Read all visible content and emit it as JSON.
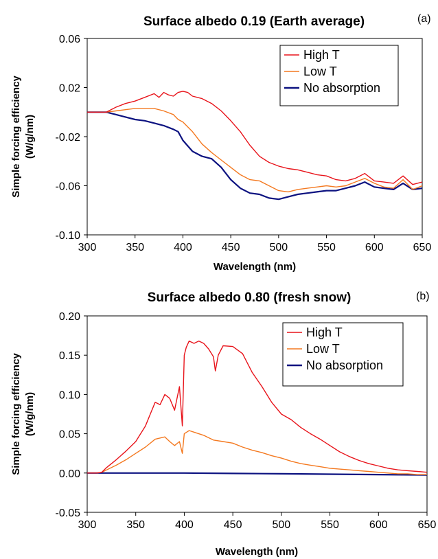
{
  "chart_data": [
    {
      "type": "line",
      "panel_label": "(a)",
      "title": "Surface albedo 0.19 (Earth average)",
      "xlabel": "Wavelength (nm)",
      "ylabel": [
        "Simple forcing efficiency",
        "(W/g/nm)"
      ],
      "xlim": [
        300,
        650
      ],
      "ylim": [
        -0.1,
        0.06
      ],
      "xticks": [
        "300",
        "350",
        "400",
        "450",
        "500",
        "550",
        "600",
        "650"
      ],
      "yticks": [
        "-0.10",
        "-0.06",
        "-0.02",
        "0.02",
        "0.06"
      ],
      "legend_position": "top-right",
      "series": [
        {
          "name": "High T",
          "color": "#e8141b",
          "x": [
            300,
            310,
            320,
            330,
            340,
            350,
            360,
            370,
            375,
            380,
            385,
            390,
            395,
            400,
            405,
            410,
            420,
            430,
            440,
            450,
            460,
            470,
            480,
            490,
            500,
            510,
            520,
            530,
            540,
            550,
            560,
            570,
            580,
            590,
            600,
            610,
            620,
            630,
            640,
            650
          ],
          "y": [
            0.0,
            0.0,
            0.0,
            0.004,
            0.007,
            0.009,
            0.012,
            0.015,
            0.012,
            0.016,
            0.014,
            0.013,
            0.016,
            0.017,
            0.016,
            0.013,
            0.011,
            0.007,
            0.001,
            -0.007,
            -0.016,
            -0.027,
            -0.036,
            -0.041,
            -0.044,
            -0.046,
            -0.047,
            -0.049,
            -0.051,
            -0.052,
            -0.055,
            -0.056,
            -0.054,
            -0.05,
            -0.056,
            -0.057,
            -0.058,
            -0.052,
            -0.059,
            -0.057
          ]
        },
        {
          "name": "Low T",
          "color": "#f47920",
          "x": [
            300,
            310,
            320,
            330,
            340,
            350,
            360,
            370,
            380,
            390,
            395,
            400,
            410,
            420,
            430,
            440,
            450,
            460,
            470,
            480,
            490,
            500,
            510,
            520,
            530,
            540,
            550,
            560,
            570,
            580,
            590,
            600,
            610,
            620,
            630,
            640,
            650
          ],
          "y": [
            0.0,
            0.0,
            0.0,
            0.001,
            0.002,
            0.003,
            0.003,
            0.003,
            0.001,
            -0.002,
            -0.006,
            -0.008,
            -0.016,
            -0.026,
            -0.033,
            -0.039,
            -0.045,
            -0.051,
            -0.055,
            -0.056,
            -0.06,
            -0.064,
            -0.065,
            -0.063,
            -0.062,
            -0.061,
            -0.06,
            -0.061,
            -0.06,
            -0.057,
            -0.054,
            -0.058,
            -0.061,
            -0.062,
            -0.055,
            -0.063,
            -0.06
          ]
        },
        {
          "name": "No absorption",
          "color": "#0c1280",
          "x": [
            300,
            310,
            320,
            330,
            340,
            350,
            360,
            370,
            380,
            390,
            395,
            400,
            410,
            420,
            430,
            440,
            450,
            460,
            470,
            480,
            490,
            500,
            510,
            520,
            530,
            540,
            550,
            560,
            570,
            580,
            590,
            600,
            610,
            620,
            630,
            640,
            650
          ],
          "y": [
            0.0,
            0.0,
            0.0,
            -0.002,
            -0.004,
            -0.006,
            -0.007,
            -0.009,
            -0.011,
            -0.014,
            -0.016,
            -0.023,
            -0.032,
            -0.036,
            -0.038,
            -0.045,
            -0.055,
            -0.062,
            -0.066,
            -0.067,
            -0.07,
            -0.071,
            -0.069,
            -0.067,
            -0.066,
            -0.065,
            -0.064,
            -0.064,
            -0.062,
            -0.06,
            -0.057,
            -0.061,
            -0.062,
            -0.063,
            -0.058,
            -0.063,
            -0.062
          ]
        }
      ]
    },
    {
      "type": "line",
      "panel_label": "(b)",
      "title": "Surface albedo 0.80 (fresh snow)",
      "xlabel": "Wavelength (nm)",
      "ylabel": [
        "Simple forcing efficiency",
        "(W/g/nm)"
      ],
      "xlim": [
        300,
        650
      ],
      "ylim": [
        -0.05,
        0.2
      ],
      "xticks": [
        "300",
        "350",
        "400",
        "450",
        "500",
        "550",
        "600",
        "650"
      ],
      "yticks": [
        "-0.05",
        "0.00",
        "0.05",
        "0.10",
        "0.15",
        "0.20"
      ],
      "legend_position": "top-right",
      "series": [
        {
          "name": "High T",
          "color": "#e8141b",
          "x": [
            300,
            310,
            315,
            320,
            330,
            340,
            350,
            360,
            365,
            370,
            375,
            380,
            385,
            390,
            395,
            398,
            400,
            402,
            405,
            410,
            415,
            420,
            425,
            430,
            432,
            435,
            440,
            450,
            460,
            470,
            480,
            490,
            500,
            510,
            520,
            530,
            540,
            550,
            560,
            570,
            580,
            590,
            600,
            610,
            620,
            630,
            640,
            650
          ],
          "y": [
            0.0,
            0.0,
            0.001,
            0.007,
            0.017,
            0.028,
            0.04,
            0.06,
            0.075,
            0.09,
            0.087,
            0.1,
            0.095,
            0.08,
            0.11,
            0.06,
            0.15,
            0.16,
            0.168,
            0.165,
            0.168,
            0.165,
            0.158,
            0.148,
            0.13,
            0.15,
            0.162,
            0.161,
            0.152,
            0.128,
            0.11,
            0.09,
            0.075,
            0.068,
            0.058,
            0.05,
            0.043,
            0.035,
            0.027,
            0.021,
            0.016,
            0.012,
            0.009,
            0.006,
            0.004,
            0.003,
            0.002,
            0.001
          ]
        },
        {
          "name": "Low T",
          "color": "#f47920",
          "x": [
            300,
            310,
            315,
            320,
            330,
            340,
            350,
            360,
            370,
            380,
            385,
            390,
            395,
            398,
            400,
            405,
            410,
            420,
            430,
            440,
            450,
            460,
            470,
            480,
            490,
            500,
            510,
            520,
            530,
            540,
            550,
            560,
            570,
            580,
            590,
            600,
            610,
            620,
            630,
            640,
            650
          ],
          "y": [
            0.0,
            0.0,
            0.001,
            0.004,
            0.01,
            0.017,
            0.025,
            0.033,
            0.043,
            0.046,
            0.04,
            0.035,
            0.04,
            0.025,
            0.05,
            0.054,
            0.052,
            0.048,
            0.042,
            0.04,
            0.038,
            0.033,
            0.029,
            0.026,
            0.022,
            0.019,
            0.015,
            0.012,
            0.01,
            0.008,
            0.006,
            0.005,
            0.004,
            0.003,
            0.002,
            0.001,
            0.0,
            -0.001,
            -0.001,
            -0.002,
            -0.002
          ]
        },
        {
          "name": "No absorption",
          "color": "#0c1280",
          "x": [
            300,
            350,
            400,
            450,
            500,
            550,
            600,
            650
          ],
          "y": [
            0.0,
            0.0,
            0.0,
            -0.0005,
            -0.001,
            -0.0015,
            -0.002,
            -0.0025
          ]
        }
      ]
    }
  ]
}
